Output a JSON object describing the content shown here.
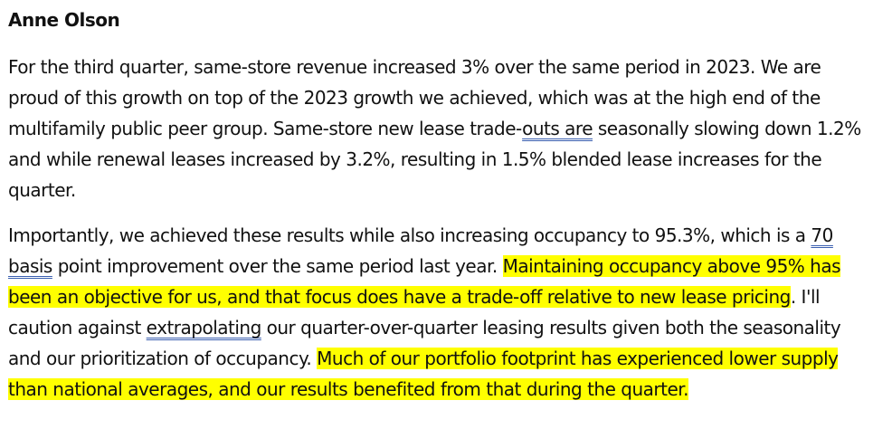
{
  "speaker": "Anne Olson",
  "paragraph1": {
    "t1": "For the third quarter, same-store revenue increased 3% over the same period in 2023. We are proud of this growth on top of the 2023 growth we achieved, which was at the high end of the multifamily public peer group. Same-store new lease trade-",
    "u1": "outs are",
    "t2": " seasonally slowing down 1.2% and while renewal leases increased by 3.2%, resulting in 1.5% blended lease increases for the quarter."
  },
  "paragraph2": {
    "t1": "Importantly, we achieved these results while also increasing occupancy to 95.3%, which is a ",
    "u1": "70 basis",
    "t2": " point improvement over the same period last year. ",
    "h1": "Maintaining occupancy above 95% has been an objective for us, and that focus does have a trade-off relative to new lease pricing",
    "t3": ". I'll caution against ",
    "u2": "extrapolating",
    "t4": " our quarter-over-quarter leasing results given both the seasonality and our prioritization of occupancy. ",
    "h2": "Much of our portfolio footprint has experienced lower supply than national averages, and our results benefited from that during the quarter."
  },
  "colors": {
    "highlight": "#ffff00",
    "underline": "#3a5fb0"
  }
}
